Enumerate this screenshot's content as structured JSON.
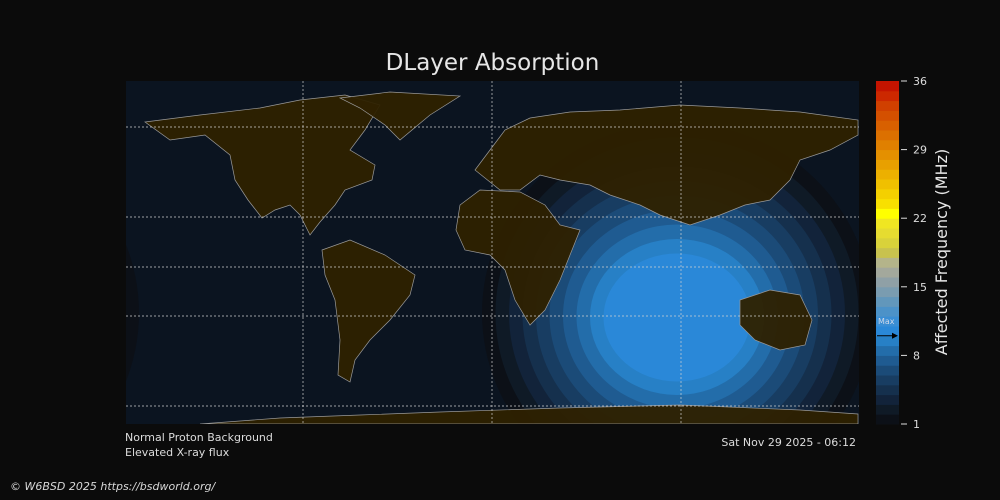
{
  "title": "DLayer Absorption",
  "colorbar": {
    "label": "Affected Frequency (MHz)",
    "min": 1,
    "max": 36,
    "ticks": [
      "36",
      "29",
      "22",
      "15",
      "8",
      "1"
    ],
    "max_marker_label": "Max",
    "max_marker_value": 10,
    "colors": [
      "#0c1017",
      "#0f1a26",
      "#12233a",
      "#15304d",
      "#183d62",
      "#1b4b78",
      "#1f5b91",
      "#236daa",
      "#2780c6",
      "#2a88d8",
      "#3a8ed4",
      "#4c92c8",
      "#6297bb",
      "#7a9cb0",
      "#8fa0a6",
      "#a3a89c",
      "#b4b48a",
      "#c8c24e",
      "#d9d23a",
      "#e6dc30",
      "#f0e622",
      "#ffff00",
      "#f8e000",
      "#f4d000",
      "#f0c000",
      "#ecb000",
      "#e8a000",
      "#e49000",
      "#e08000",
      "#dc7000",
      "#d86000",
      "#d45000",
      "#d04000",
      "#cc2800",
      "#c41400",
      "#bc0000"
    ]
  },
  "status": {
    "proton": "Normal Proton Background",
    "xray": "Elevated X-ray flux",
    "timestamp": "Sat Nov 29 2025 - 06:12"
  },
  "footer": {
    "copyright": "© W6BSD 2025 https://bsdworld.org/"
  },
  "map_colors": {
    "ocean": "#0b1420",
    "land": "#2e2100",
    "coast": "#9a9a9a"
  },
  "absorption_peak": {
    "value_mhz": 10
  }
}
